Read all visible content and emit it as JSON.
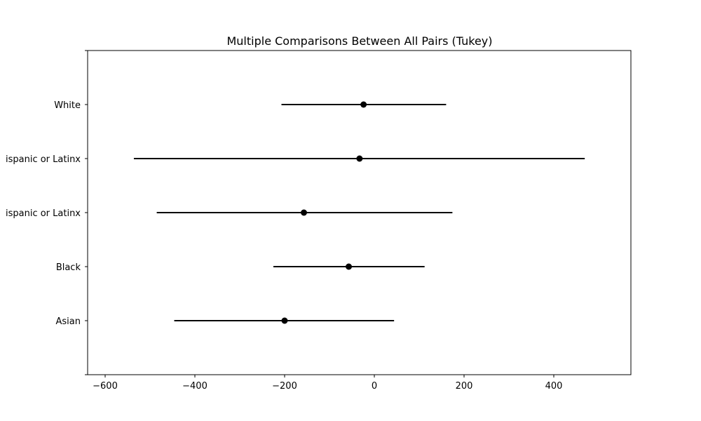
{
  "chart_data": {
    "type": "scatter",
    "subtype": "interval",
    "title": "Multiple Comparisons Between All Pairs (Tukey)",
    "xlabel": "",
    "ylabel": "",
    "xlim": [
      -600,
      600
    ],
    "xticks": [
      -600,
      -400,
      -200,
      0,
      200,
      400
    ],
    "xtick_labels": [
      "−600",
      "−400",
      "−200",
      "0",
      "200",
      "400"
    ],
    "categories": [
      "Asian",
      "Black",
      "Hispanic or Latinx",
      "Hispanic or Latinx",
      "White"
    ],
    "category_labels": [
      "Asian",
      "Black",
      "ispanic or Latinx",
      "ispanic or Latinx",
      "White"
    ],
    "means": [
      -200,
      -57,
      -157,
      -33,
      -24
    ],
    "lower": [
      -446,
      -225,
      -485,
      -536,
      -207
    ],
    "upper": [
      44,
      112,
      174,
      469,
      160
    ],
    "grid": false,
    "legend": "none",
    "colors": {
      "marker": "#000000",
      "line": "#000000",
      "axes": "#000000",
      "background": "#ffffff"
    }
  }
}
